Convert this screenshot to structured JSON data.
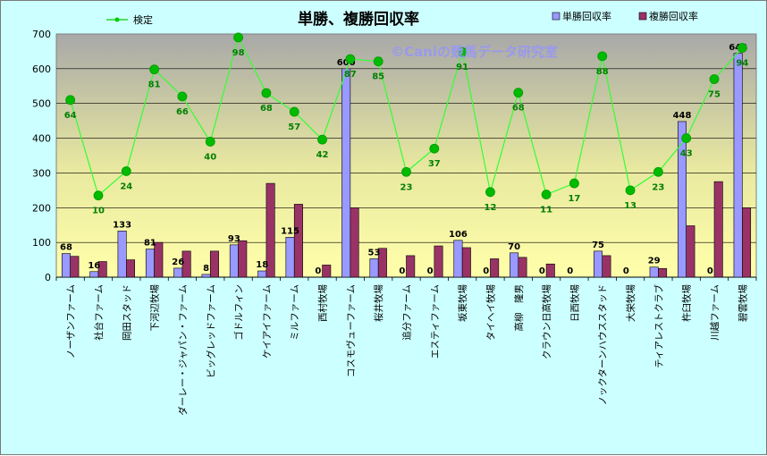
{
  "chart_data": {
    "type": "bar",
    "title": "単勝、複勝回収率",
    "watermark": "©Caniの競馬データ研究室",
    "ylim": [
      0,
      700
    ],
    "yticks": [
      0,
      100,
      200,
      300,
      400,
      500,
      600,
      700
    ],
    "grid": true,
    "legend_position": "top",
    "categories": [
      "ノーザンファーム",
      "社台ファーム",
      "岡田スタッド",
      "下河辺牧場",
      "ダーレー・ジャパン・ファーム",
      "ビッグレッドファーム",
      "ゴドルフィン",
      "ケイアイファーム",
      "ミルファーム",
      "西村牧場",
      "コスモヴューファーム",
      "桜井牧場",
      "追分ファーム",
      "エスティファーム",
      "坂東牧場",
      "タイヘイ牧場",
      "高柳　隆男",
      "クラウン日高牧場",
      "日西牧場",
      "ノックターンハウススタッド",
      "大栄牧場",
      "ティアレストクラブ",
      "杵臼牧場",
      "川越ファーム",
      "碧雲牧場"
    ],
    "series": [
      {
        "name": "単勝回収率",
        "kind": "bar",
        "color": "#9999ff",
        "values": [
          68,
          16,
          133,
          81,
          26,
          8,
          93,
          18,
          115,
          0,
          600,
          53,
          0,
          0,
          106,
          0,
          70,
          0,
          0,
          75,
          0,
          29,
          448,
          0,
          644
        ]
      },
      {
        "name": "複勝回収率",
        "kind": "bar",
        "color": "#993366",
        "values": [
          60,
          45,
          50,
          100,
          75,
          75,
          105,
          270,
          210,
          35,
          200,
          83,
          62,
          90,
          85,
          53,
          57,
          38,
          0,
          62,
          0,
          25,
          148,
          275,
          200
        ]
      },
      {
        "name": "検定",
        "kind": "line",
        "color": "#00cc00",
        "values": [
          510,
          235,
          305,
          598,
          520,
          390,
          690,
          530,
          476,
          396,
          628,
          621,
          303,
          370,
          648,
          245,
          531,
          238,
          270,
          636,
          250,
          303,
          400,
          570,
          660
        ],
        "labels": [
          64,
          10,
          24,
          81,
          66,
          40,
          98,
          68,
          57,
          42,
          87,
          85,
          23,
          37,
          91,
          12,
          68,
          11,
          17,
          88,
          13,
          23,
          43,
          75,
          94
        ]
      }
    ]
  }
}
